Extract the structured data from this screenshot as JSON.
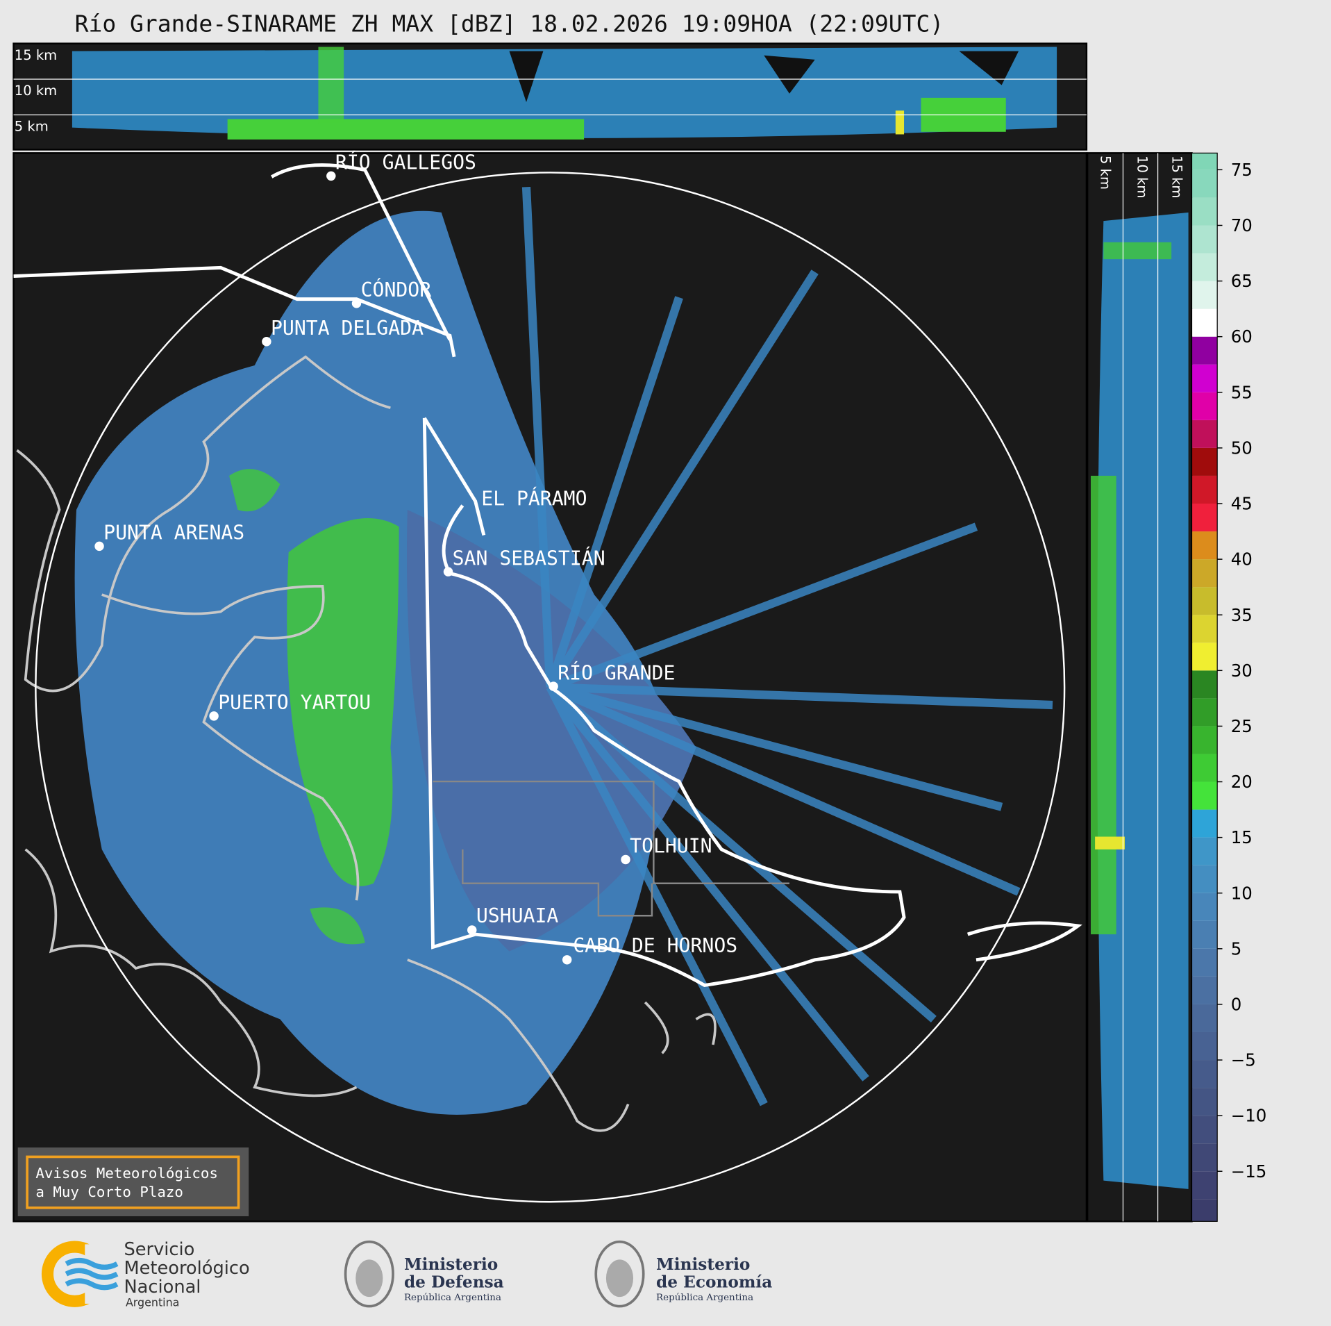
{
  "title": "Río Grande-SINARAME ZH MAX [dBZ] 18.02.2026 19:09HOA (22:09UTC)",
  "cross_section_top": {
    "height_labels": [
      "15 km",
      "10 km",
      "5 km"
    ]
  },
  "cross_section_right": {
    "height_labels": [
      "5 km",
      "10 km",
      "15 km"
    ]
  },
  "places": [
    {
      "label": "RÍO GALLEGOS"
    },
    {
      "label": "CÓNDOR"
    },
    {
      "label": "PUNTA DELGADA"
    },
    {
      "label": "EL PÁRAMO"
    },
    {
      "label": "SAN SEBASTIÁN"
    },
    {
      "label": "PUNTA ARENAS"
    },
    {
      "label": "RÍO GRANDE"
    },
    {
      "label": "PUERTO YARTOU"
    },
    {
      "label": "TOLHUIN"
    },
    {
      "label": "USHUAIA"
    },
    {
      "label": "CABO DE HORNOS"
    }
  ],
  "colorbar": {
    "lim": [
      -19.5,
      76.5
    ],
    "bounds": [
      -19.5,
      -17.5,
      -15,
      -12.5,
      -10,
      -7.5,
      -5,
      -2.5,
      0,
      2.5,
      5,
      7.5,
      10,
      12.5,
      15,
      17.5,
      20,
      22.5,
      25,
      27.5,
      30,
      32.5,
      35,
      37.5,
      40,
      42.5,
      45,
      47.5,
      50,
      52.5,
      55,
      57.5,
      60,
      62.5,
      65,
      67.5,
      70,
      72.5,
      75,
      76.5
    ],
    "colors": [
      "#3b3d6b",
      "#3e4271",
      "#404876",
      "#424e7d",
      "#445584",
      "#465b8b",
      "#486293",
      "#4a699a",
      "#4b70a2",
      "#4b77aa",
      "#4a7fb2",
      "#4886ba",
      "#448ec1",
      "#3f96c8",
      "#2ea4d8",
      "#44e33a",
      "#3ecb34",
      "#38b42e",
      "#319d28",
      "#2a8622",
      "#f0ee30",
      "#dcd430",
      "#c8bc2c",
      "#cca828",
      "#dc8c1c",
      "#f0203c",
      "#d01828",
      "#a00c0c",
      "#c0105a",
      "#e000a8",
      "#d000d0",
      "#9000a0",
      "#ffffff",
      "#e0f4ec",
      "#c4ecdc",
      "#aee4d0",
      "#9adec4",
      "#88d8bc",
      "#80d6b6"
    ],
    "ticks": [
      75,
      70,
      65,
      60,
      55,
      50,
      45,
      40,
      35,
      30,
      25,
      20,
      15,
      10,
      5,
      0,
      {
        "value": -5,
        "label": "−5"
      },
      {
        "value": -10,
        "label": "−10"
      },
      {
        "value": -15,
        "label": "−15"
      }
    ]
  },
  "warning_box": {
    "lines": [
      "Avisos Meteorológicos",
      "a Muy Corto Plazo"
    ]
  },
  "logos": {
    "smn": {
      "lines": [
        "Servicio",
        "Meteorológico",
        "Nacional",
        "Argentina"
      ]
    },
    "defensa": {
      "lines": [
        "Ministerio",
        "de Defensa",
        "República Argentina"
      ]
    },
    "economia": {
      "lines": [
        "Ministerio",
        "de Economía",
        "República Argentina"
      ]
    }
  }
}
